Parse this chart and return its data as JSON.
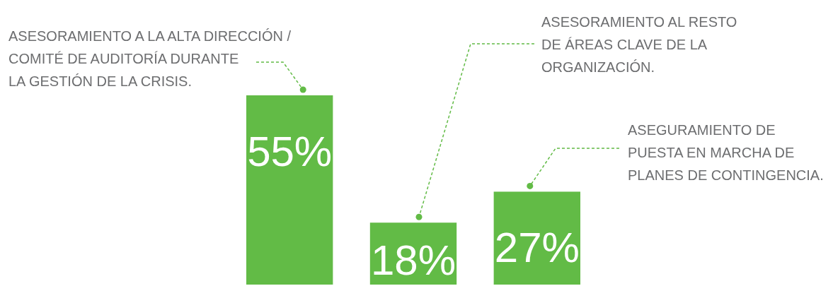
{
  "chart_data": {
    "type": "bar",
    "categories": [
      null,
      null,
      null
    ],
    "annotations": [
      "ASESORAMIENTO A LA ALTA DIRECCIÓN /\nCOMITÉ DE AUDITORÍA DURANTE\nLA GESTIÓN DE LA CRISIS.",
      "ASESORAMIENTO AL RESTO\nDE ÁREAS CLAVE DE LA\nORGANIZACIÓN.",
      "ASEGURAMIENTO DE\nPUESTA EN MARCHA DE\nPLANES DE CONTINGENCIA."
    ],
    "values": [
      55,
      18,
      27
    ],
    "value_labels": [
      "55%",
      "18%",
      "27%"
    ],
    "color": "#62bb46"
  }
}
